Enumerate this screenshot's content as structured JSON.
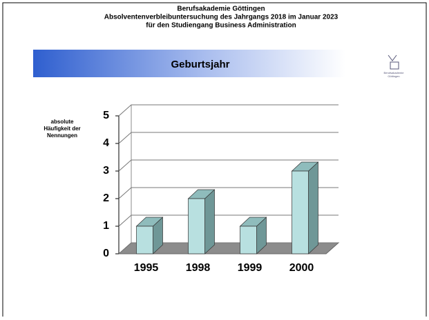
{
  "header": {
    "lines": [
      "Berufsakademie Göttingen",
      "Absolventenverbleibuntersuchung des Jahrgangs 2018 im Januar 2023",
      "für den Studiengang Business Administration"
    ]
  },
  "logo": {
    "lines": [
      "Berufsakademie",
      "Göttingen"
    ]
  },
  "chart_data": {
    "type": "bar3d",
    "title": "Geburtsjahr",
    "y_label": [
      "absolute",
      "Häufigkeit der",
      "Nennungen"
    ],
    "categories": [
      "1995",
      "1998",
      "1999",
      "2000"
    ],
    "values": [
      1,
      2,
      1,
      3
    ],
    "color": "#b8e0e0",
    "ylim": [
      0,
      5
    ],
    "yticks": [
      0,
      1,
      2,
      3,
      4,
      5
    ],
    "grid": true
  }
}
